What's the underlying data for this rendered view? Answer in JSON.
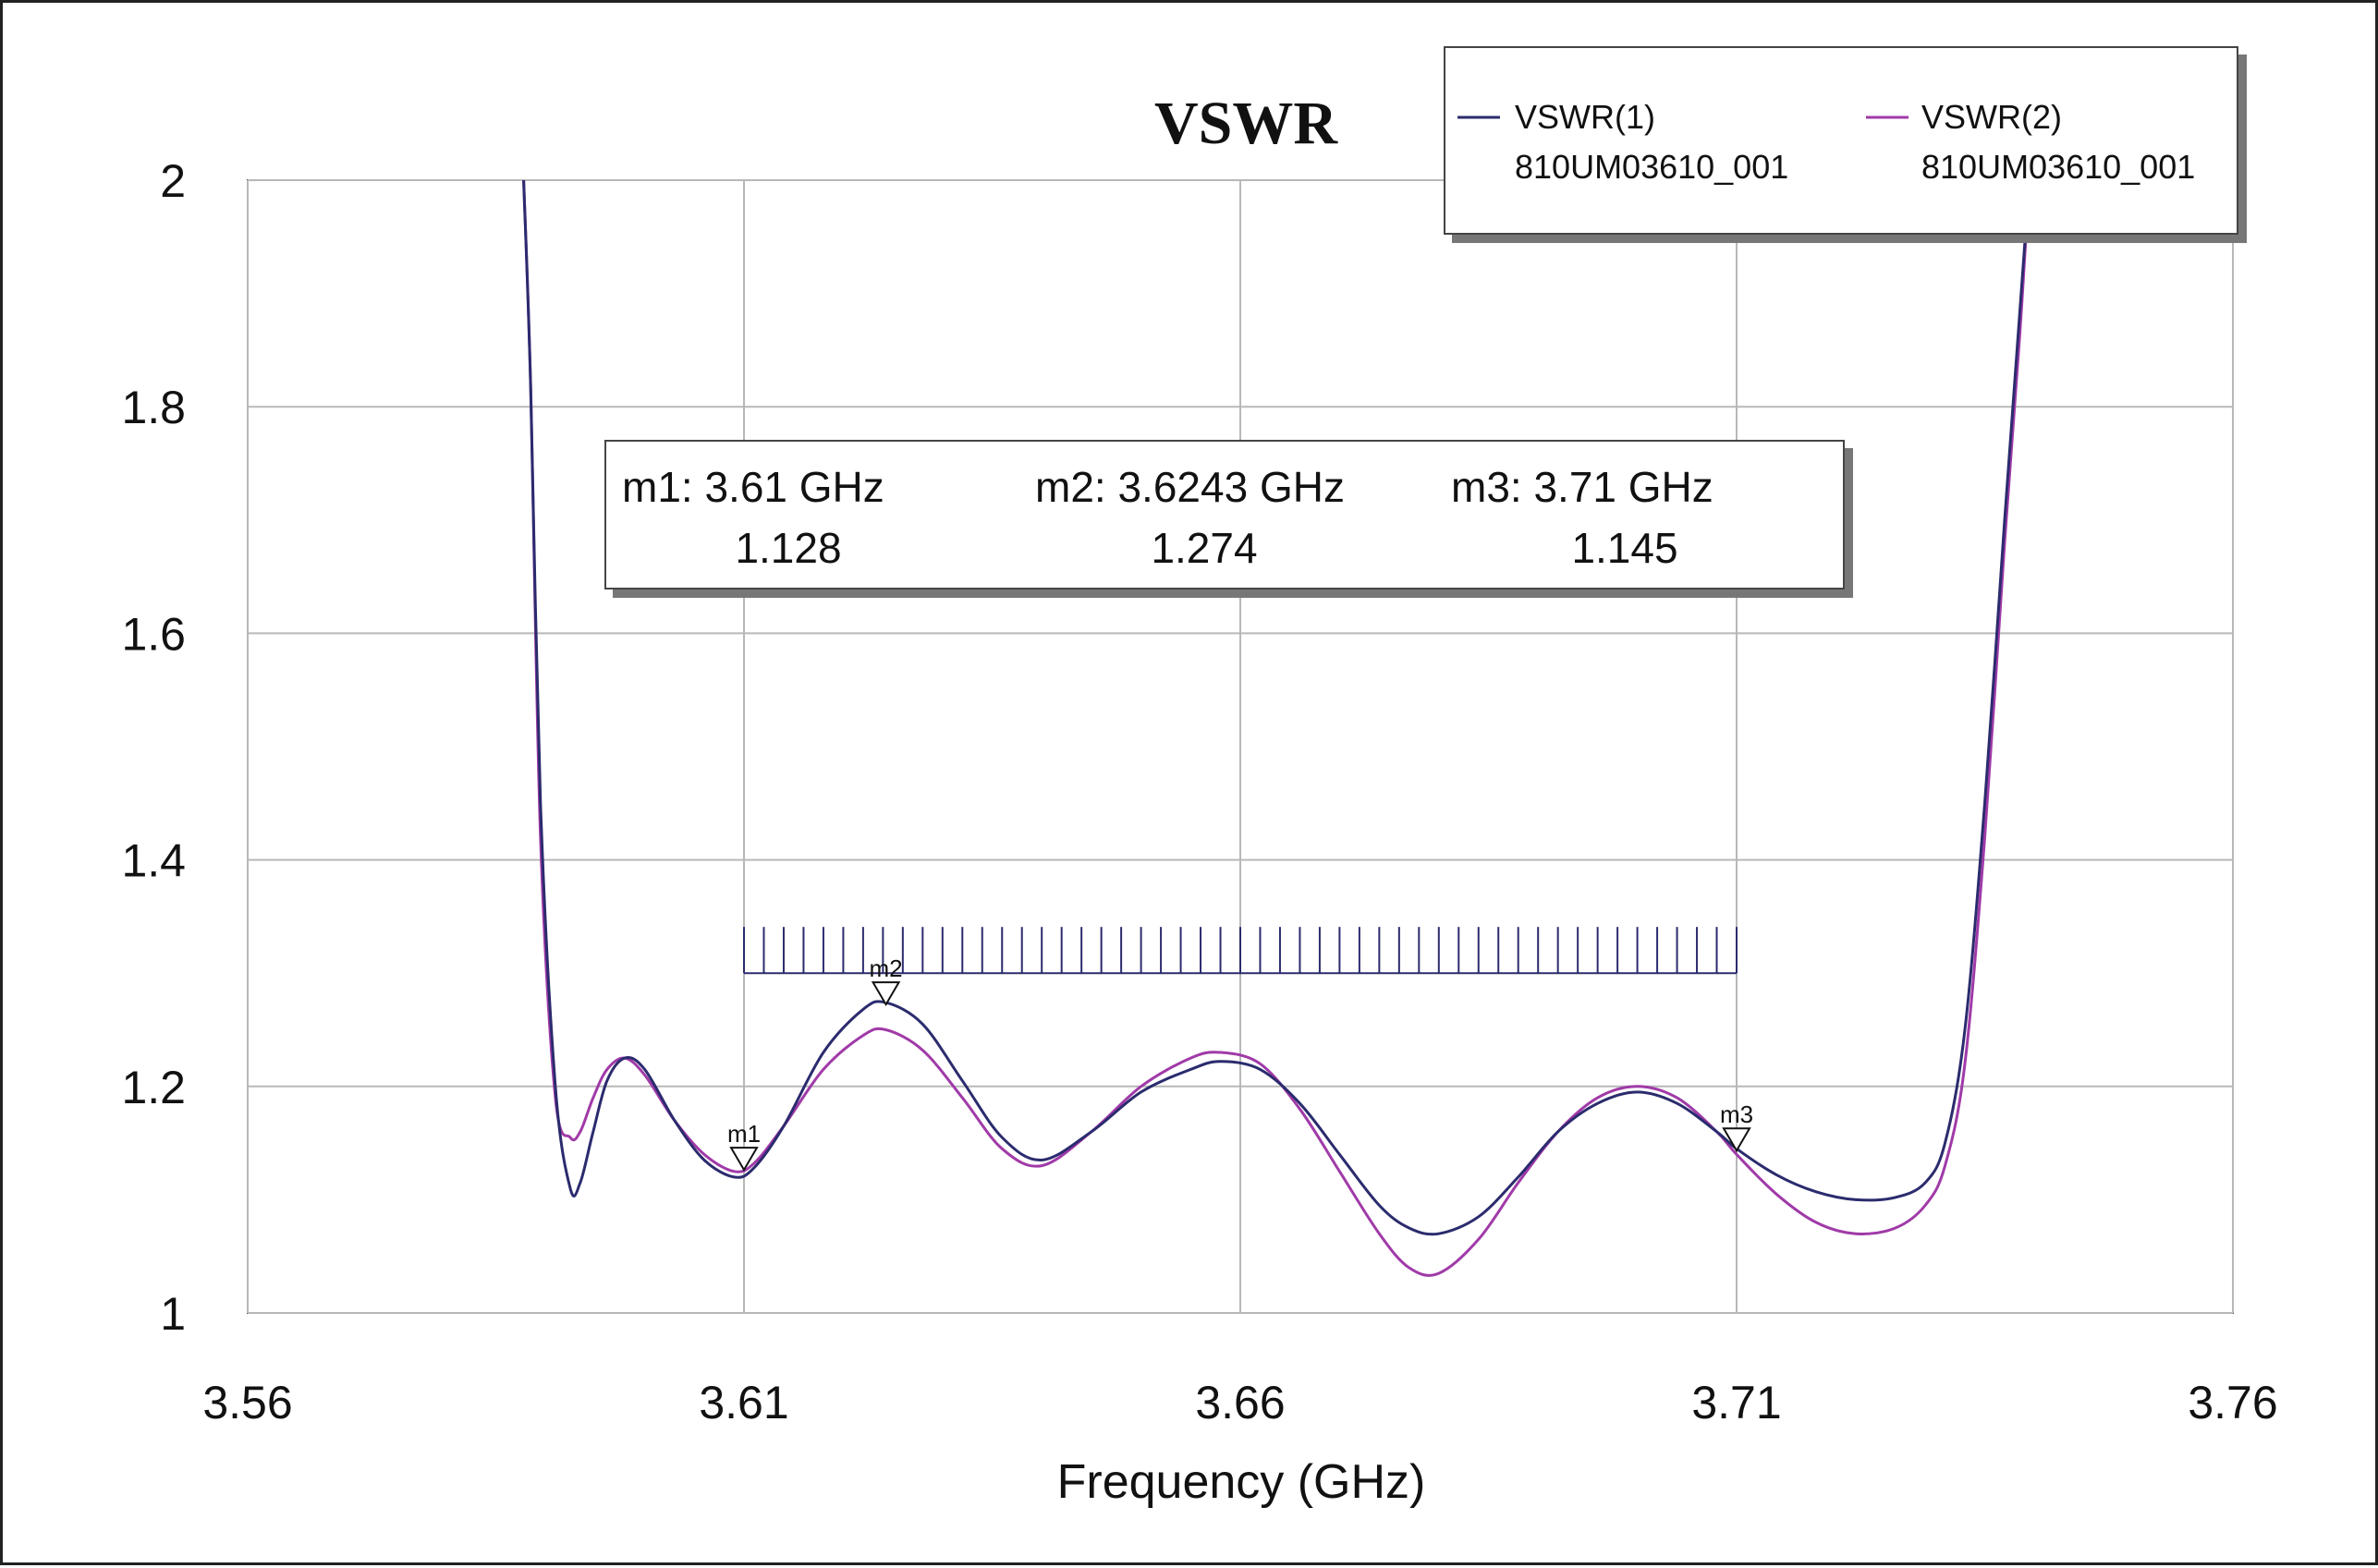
{
  "chart_data": {
    "type": "line",
    "title": "VSWR",
    "xlabel": "Frequency (GHz)",
    "ylabel": "",
    "xlim": [
      3.56,
      3.76
    ],
    "ylim": [
      1,
      2
    ],
    "xticks": [
      "3.56",
      "3.61",
      "3.66",
      "3.71",
      "3.76"
    ],
    "xtick_values": [
      3.56,
      3.61,
      3.66,
      3.71,
      3.76
    ],
    "yticks": [
      "1",
      "1.2",
      "1.4",
      "1.6",
      "1.8",
      "2"
    ],
    "ytick_values": [
      1,
      1.2,
      1.4,
      1.6,
      1.8,
      2
    ],
    "grid": true,
    "legend_position": "top-right",
    "series": [
      {
        "name": "VSWR(1)",
        "sub": "810UM03610_001",
        "color": "#2b2b6e",
        "x": [
          3.5878,
          3.5885,
          3.5895,
          3.591,
          3.5925,
          3.5935,
          3.5948,
          3.5962,
          3.598,
          3.6,
          3.603,
          3.606,
          3.609,
          3.611,
          3.614,
          3.618,
          3.622,
          3.6243,
          3.628,
          3.632,
          3.636,
          3.64,
          3.645,
          3.65,
          3.655,
          3.658,
          3.662,
          3.666,
          3.67,
          3.674,
          3.677,
          3.68,
          3.684,
          3.688,
          3.692,
          3.696,
          3.7,
          3.704,
          3.708,
          3.71,
          3.714,
          3.718,
          3.722,
          3.726,
          3.729,
          3.731,
          3.733,
          3.735,
          3.737,
          3.7385,
          3.7395
        ],
        "y": [
          2.0,
          1.82,
          1.45,
          1.2,
          1.11,
          1.115,
          1.16,
          1.205,
          1.225,
          1.215,
          1.17,
          1.135,
          1.12,
          1.128,
          1.165,
          1.23,
          1.268,
          1.274,
          1.255,
          1.205,
          1.155,
          1.135,
          1.16,
          1.195,
          1.215,
          1.222,
          1.215,
          1.185,
          1.14,
          1.095,
          1.075,
          1.07,
          1.085,
          1.12,
          1.16,
          1.185,
          1.195,
          1.185,
          1.16,
          1.145,
          1.122,
          1.107,
          1.1,
          1.102,
          1.115,
          1.15,
          1.25,
          1.45,
          1.7,
          1.88,
          2.0
        ]
      },
      {
        "name": "VSWR(2)",
        "sub": "810UM03610_001",
        "color": "#a03aa8",
        "x": [
          3.5878,
          3.5885,
          3.5895,
          3.591,
          3.5925,
          3.5935,
          3.5948,
          3.5962,
          3.598,
          3.6,
          3.603,
          3.606,
          3.609,
          3.611,
          3.614,
          3.618,
          3.622,
          3.6243,
          3.628,
          3.632,
          3.636,
          3.64,
          3.645,
          3.65,
          3.655,
          3.658,
          3.662,
          3.666,
          3.67,
          3.674,
          3.677,
          3.68,
          3.684,
          3.688,
          3.692,
          3.696,
          3.7,
          3.704,
          3.708,
          3.71,
          3.714,
          3.718,
          3.722,
          3.726,
          3.729,
          3.731,
          3.733,
          3.735,
          3.737,
          3.7385,
          3.7395
        ],
        "y": [
          2.0,
          1.82,
          1.42,
          1.19,
          1.155,
          1.16,
          1.19,
          1.215,
          1.225,
          1.21,
          1.17,
          1.14,
          1.125,
          1.132,
          1.165,
          1.215,
          1.245,
          1.25,
          1.232,
          1.19,
          1.145,
          1.13,
          1.16,
          1.2,
          1.225,
          1.23,
          1.22,
          1.18,
          1.125,
          1.07,
          1.04,
          1.035,
          1.065,
          1.115,
          1.16,
          1.19,
          1.2,
          1.19,
          1.16,
          1.14,
          1.105,
          1.08,
          1.07,
          1.075,
          1.095,
          1.13,
          1.22,
          1.42,
          1.68,
          1.86,
          2.0
        ]
      }
    ],
    "markers": [
      {
        "name": "m1",
        "x": 3.61,
        "y": 1.128,
        "label": "m1: 3.61 GHz",
        "value": "1.128"
      },
      {
        "name": "m2",
        "x": 3.6243,
        "y": 1.274,
        "label": "m2: 3.6243 GHz",
        "value": "1.274"
      },
      {
        "name": "m3",
        "x": 3.71,
        "y": 1.145,
        "label": "m3: 3.71 GHz",
        "value": "1.145"
      }
    ],
    "band": {
      "x_start": 3.61,
      "x_end": 3.71,
      "y": 1.3,
      "ticks": 51
    }
  }
}
